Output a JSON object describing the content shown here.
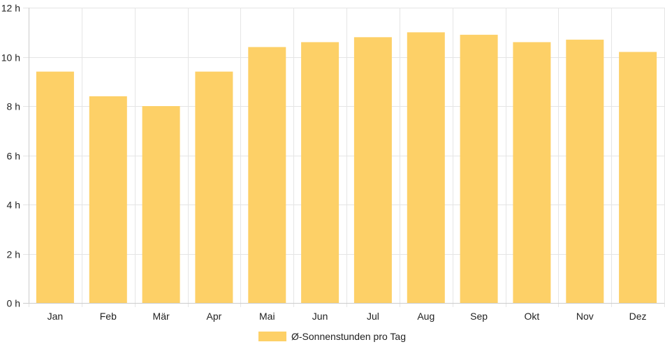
{
  "chart_data": {
    "type": "bar",
    "categories": [
      "Jan",
      "Feb",
      "Mär",
      "Apr",
      "Mai",
      "Jun",
      "Jul",
      "Aug",
      "Sep",
      "Okt",
      "Nov",
      "Dez"
    ],
    "series": [
      {
        "name": "Ø-Sonnenstunden pro Tag",
        "values": [
          9.4,
          8.4,
          8.0,
          9.4,
          10.4,
          10.6,
          10.8,
          11.0,
          10.9,
          10.6,
          10.7,
          10.2
        ],
        "color": "#fdd067"
      }
    ],
    "y_ticks": [
      "0 h",
      "2 h",
      "4 h",
      "6 h",
      "8 h",
      "10 h",
      "12 h"
    ],
    "ylim": [
      0,
      12
    ],
    "grid": true,
    "legend_position": "bottom",
    "colors": {
      "grid": "#e5e5e5",
      "axis": "#cccccc",
      "text": "#222222"
    }
  }
}
